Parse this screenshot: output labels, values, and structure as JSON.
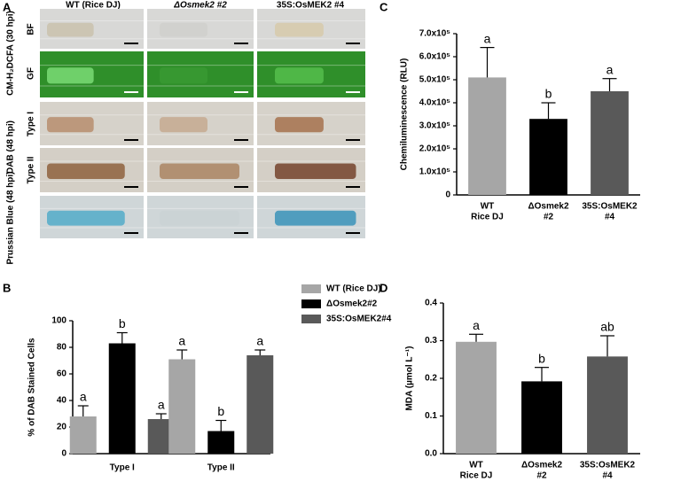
{
  "panel_a": {
    "panel_label": "A",
    "columns": [
      "WT (Rice DJ)",
      "ΔOsmek2 #2",
      "35S:OsMEK2 #4"
    ],
    "group_labels": [
      "CM-H₂DCFA (30 hpi)",
      "DAB (48 hpi)",
      "Prussian Blue (48 hpi)"
    ],
    "row_labels": [
      "BF",
      "GF",
      "Type I",
      "Type II"
    ]
  },
  "chart_data": [
    {
      "type": "bar",
      "panel_label": "C",
      "y_label": "Chemiluminescence (RLU)",
      "categories": [
        [
          "WT",
          "Rice DJ"
        ],
        [
          "ΔOsmek2",
          "#2"
        ],
        [
          "35S:OsMEK2",
          "#4"
        ]
      ],
      "values": [
        510000,
        330000,
        450000
      ],
      "errors": [
        130000,
        70000,
        55000
      ],
      "colors": [
        "#a6a6a6",
        "#000000",
        "#595959"
      ],
      "annotations": [
        "a",
        "b",
        "a"
      ],
      "ylim": [
        0,
        700000
      ],
      "yticks": [
        0,
        {
          "value": 100000,
          "label": "1.0x10⁵"
        },
        {
          "value": 200000,
          "label": "2.0x10⁵"
        },
        {
          "value": 300000,
          "label": "3.0x10⁵"
        },
        {
          "value": 400000,
          "label": "4.0x10⁵"
        },
        {
          "value": 500000,
          "label": "5.0x10⁵"
        },
        {
          "value": 600000,
          "label": "6.0x10⁵"
        },
        {
          "value": 700000,
          "label": "7.0x10⁵"
        }
      ]
    },
    {
      "type": "grouped_bar",
      "panel_label": "B",
      "y_label": "% of DAB Stained Cells",
      "categories": [
        "Type I",
        "Type II"
      ],
      "series": [
        {
          "name": "WT (Rice DJ)",
          "color": "#a6a6a6",
          "values": [
            28,
            71
          ],
          "errors": [
            8,
            7
          ],
          "annotations": [
            "a",
            "a"
          ]
        },
        {
          "name": "ΔOsmek2#2",
          "color": "#000000",
          "values": [
            83,
            17
          ],
          "errors": [
            8,
            8
          ],
          "annotations": [
            "b",
            "b"
          ]
        },
        {
          "name": "35S:OsMEK2#4",
          "color": "#595959",
          "values": [
            26,
            74
          ],
          "errors": [
            4,
            4
          ],
          "annotations": [
            "a",
            "a"
          ]
        }
      ],
      "ylim": [
        0,
        100
      ],
      "yticks": [
        0,
        20,
        40,
        60,
        80,
        100
      ]
    },
    {
      "type": "bar",
      "panel_label": "D",
      "y_label": "MDA (µmol L⁻¹)",
      "categories": [
        [
          "WT",
          "Rice DJ"
        ],
        [
          "ΔOsmek2",
          "#2"
        ],
        [
          "35S:OsMEK2",
          "#4"
        ]
      ],
      "values": [
        0.297,
        0.192,
        0.258
      ],
      "errors": [
        0.02,
        0.037,
        0.055
      ],
      "colors": [
        "#a6a6a6",
        "#000000",
        "#595959"
      ],
      "annotations": [
        "a",
        "b",
        "ab"
      ],
      "ylim": [
        0,
        0.4
      ],
      "yticks": [
        {
          "value": 0,
          "label": "0.0"
        },
        0.1,
        0.2,
        0.3,
        0.4
      ]
    }
  ]
}
